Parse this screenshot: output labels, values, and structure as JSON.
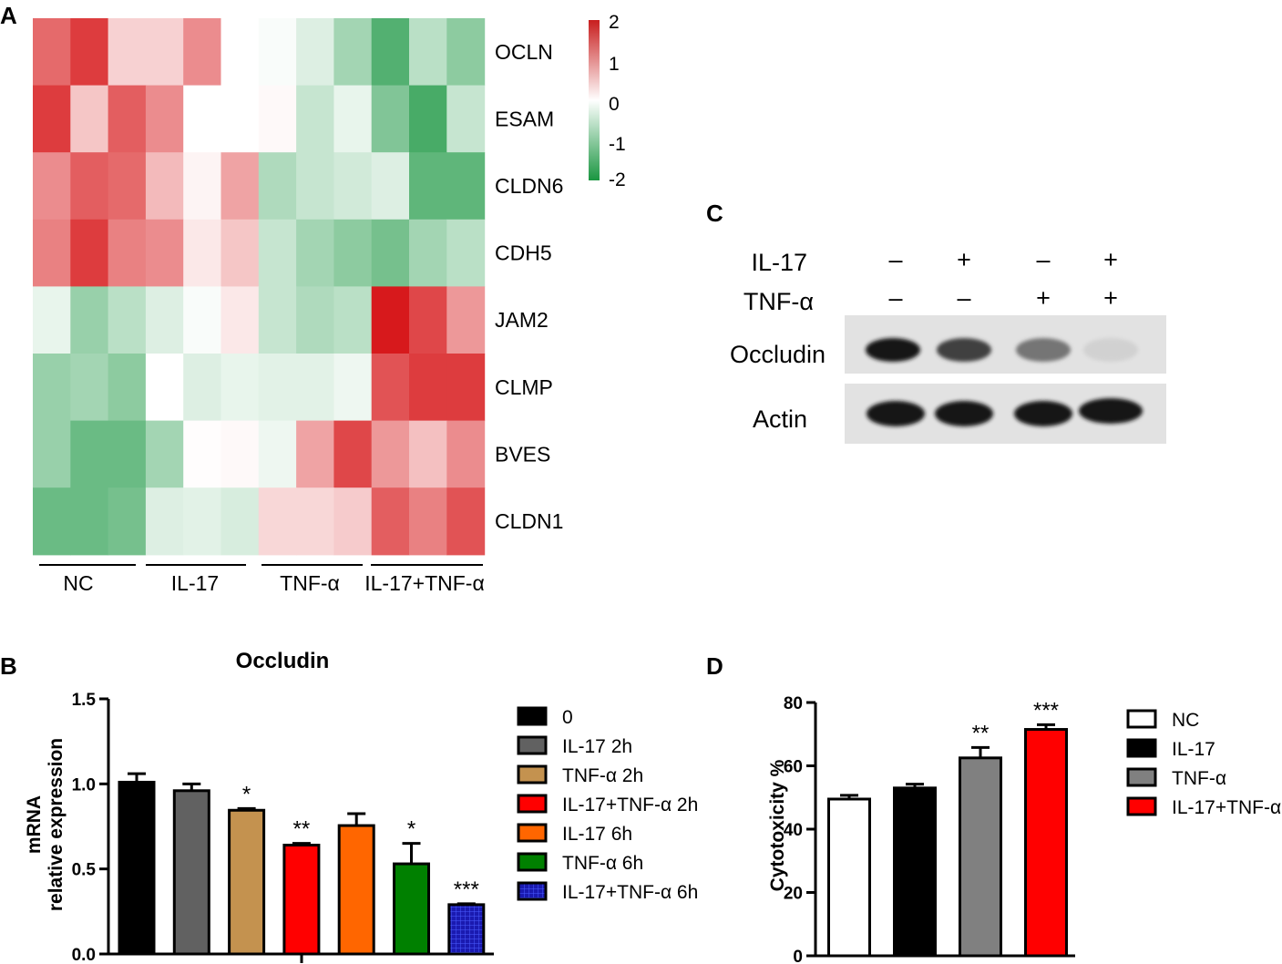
{
  "panels": {
    "A": "A",
    "B": "B",
    "C": "C",
    "D": "D"
  },
  "chart_data": [
    {
      "panel": "A",
      "type": "heatmap",
      "rows": [
        "OCLN",
        "ESAM",
        "CLDN6",
        "CDH5",
        "JAM2",
        "CLMP",
        "BVES",
        "CLDN1"
      ],
      "groups": [
        "NC",
        "IL-17",
        "TNF-α",
        "IL-17+TNF-α"
      ],
      "columns_per_group": 3,
      "values": [
        [
          1.3,
          1.7,
          0.4,
          0.4,
          1.0,
          0.0,
          -0.05,
          -0.3,
          -0.8,
          -1.5,
          -0.6,
          -1.0
        ],
        [
          1.7,
          0.5,
          1.4,
          1.0,
          0.0,
          0.0,
          0.05,
          -0.5,
          -0.2,
          -1.1,
          -1.6,
          -0.5
        ],
        [
          1.0,
          1.4,
          1.3,
          0.6,
          0.1,
          0.8,
          -0.7,
          -0.5,
          -0.4,
          -0.3,
          -1.4,
          -1.4
        ],
        [
          1.1,
          1.7,
          1.1,
          1.0,
          0.2,
          0.5,
          -0.5,
          -0.8,
          -1.0,
          -1.2,
          -0.8,
          -0.6
        ],
        [
          -0.2,
          -0.9,
          -0.6,
          -0.3,
          -0.05,
          0.2,
          -0.5,
          -0.7,
          -0.6,
          2.0,
          1.6,
          0.9
        ],
        [
          -0.9,
          -0.8,
          -1.0,
          0.0,
          -0.3,
          -0.2,
          -0.25,
          -0.25,
          -0.15,
          1.5,
          1.7,
          1.7
        ],
        [
          -0.9,
          -1.3,
          -1.3,
          -0.8,
          0.02,
          0.05,
          -0.15,
          0.8,
          1.6,
          0.9,
          0.55,
          1.0
        ],
        [
          -1.3,
          -1.3,
          -1.2,
          -0.3,
          -0.25,
          -0.35,
          0.35,
          0.35,
          0.45,
          1.4,
          1.1,
          1.5
        ]
      ],
      "colorbar": {
        "ticks": [
          "2",
          "1",
          "0",
          "-1",
          "-2"
        ],
        "range": [
          -2,
          2
        ],
        "colors": {
          "high": "#d7191c",
          "mid": "#ffffff",
          "low": "#1a9641"
        }
      }
    },
    {
      "panel": "B",
      "type": "bar",
      "title": "Occludin",
      "ylabel_lines": [
        "mRNA",
        "relative expression"
      ],
      "ylim": [
        0,
        1.5
      ],
      "yticks": [
        "0.0",
        "0.5",
        "1.0",
        "1.5"
      ],
      "categories": [
        "0",
        "IL-17  2h",
        "TNF-α  2h",
        "IL-17+TNF-α  2h",
        "IL-17  6h",
        "TNF-α  6h",
        "IL-17+TNF-α  6h"
      ],
      "values": [
        1.01,
        0.96,
        0.845,
        0.64,
        0.755,
        0.53,
        0.29
      ],
      "errors": [
        0.05,
        0.04,
        0.01,
        0.01,
        0.07,
        0.12,
        0.005
      ],
      "significance": [
        "",
        "",
        "*",
        "**",
        "",
        "*",
        "***"
      ],
      "colors": [
        "#000000",
        "#616161",
        "#c4924f",
        "#ff0000",
        "#ff6600",
        "#008000",
        "#1a1ab0"
      ],
      "legend": [
        "0",
        "IL-17 2h",
        "TNF-α  2h",
        "IL-17+TNF-α  2h",
        "IL-17 6h",
        "TNF-α  6h",
        "IL-17+TNF-α  6h"
      ]
    },
    {
      "panel": "D",
      "type": "bar",
      "ylabel": "Cytotoxicity %",
      "ylim": [
        0,
        80
      ],
      "yticks": [
        "0",
        "20",
        "40",
        "60",
        "80"
      ],
      "categories": [
        "NC",
        "IL-17",
        "TNF-α",
        "IL-17+TNF-α"
      ],
      "values": [
        49.5,
        53,
        62.5,
        71.5
      ],
      "errors": [
        1.2,
        1.2,
        3.3,
        1.5
      ],
      "significance": [
        "",
        "",
        "**",
        "***"
      ],
      "colors": [
        "#ffffff",
        "#000000",
        "#808080",
        "#ff0000"
      ],
      "legend": [
        "NC",
        "IL-17",
        "TNF-α",
        "IL-17+TNF-α"
      ]
    }
  ],
  "western_blot": {
    "row_headers": [
      "IL-17",
      "TNF-α"
    ],
    "treatments": [
      [
        "–",
        "+",
        "–",
        "+"
      ],
      [
        "–",
        "–",
        "+",
        "+"
      ]
    ],
    "bands": [
      {
        "label": "Occludin",
        "intensity": [
          1.0,
          0.8,
          0.55,
          0.12
        ]
      },
      {
        "label": "Actin",
        "intensity": [
          1.0,
          1.0,
          1.0,
          1.0
        ]
      }
    ]
  }
}
